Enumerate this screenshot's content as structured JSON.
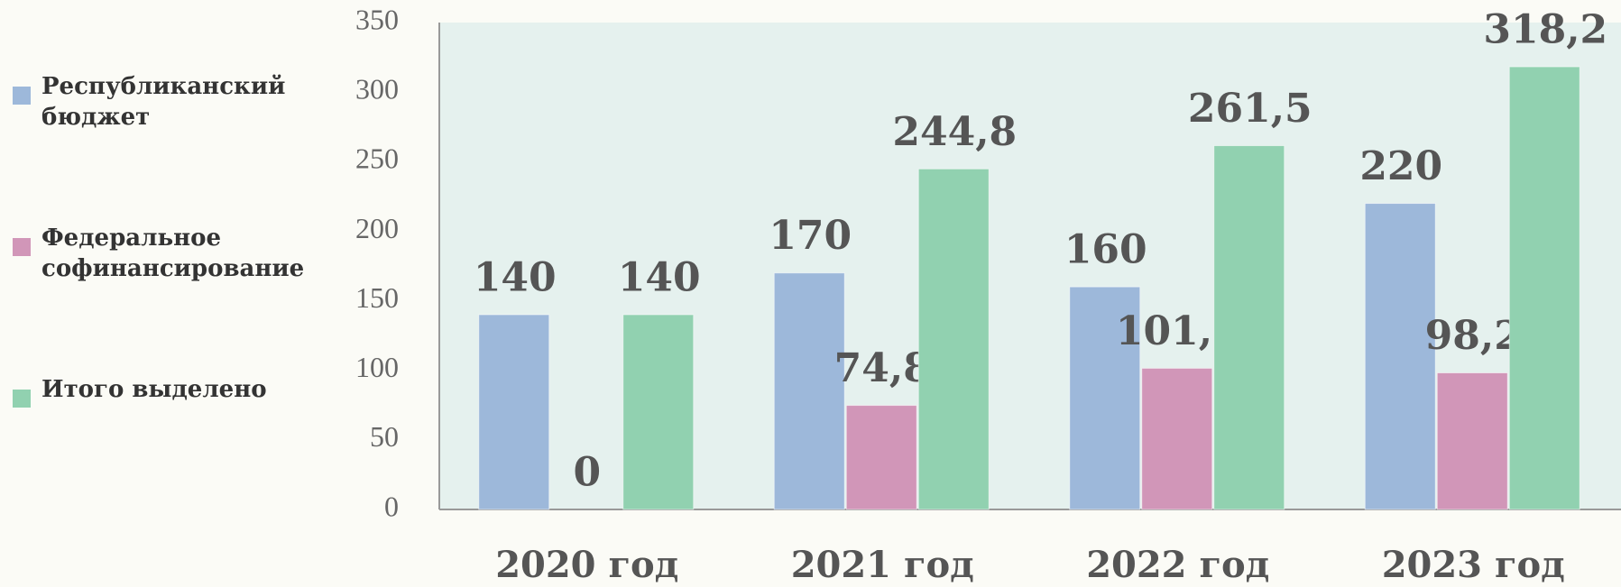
{
  "chart_data": {
    "type": "bar",
    "categories": [
      "2020 год",
      "2021 год",
      "2022 год",
      "2023 год"
    ],
    "series": [
      {
        "name": "Республиканский бюджет",
        "color": "#9db8da",
        "values": [
          140,
          170,
          160,
          220
        ]
      },
      {
        "name": "Федеральное софинансирование",
        "color": "#d196b8",
        "values": [
          0,
          74.8,
          101.5,
          98.2
        ],
        "value_labels": [
          "0",
          "74,8",
          "101,5",
          "98,2"
        ]
      },
      {
        "name": "Итого выделено",
        "color": "#91d1b0",
        "values": [
          140,
          244.8,
          261.5,
          318.2
        ],
        "value_labels": [
          "140",
          "244,8",
          "261,5",
          "318,2"
        ]
      }
    ],
    "ylim": [
      0,
      350
    ],
    "yticks": [
      0,
      50,
      100,
      150,
      200,
      250,
      300,
      350
    ],
    "legend": "left"
  }
}
